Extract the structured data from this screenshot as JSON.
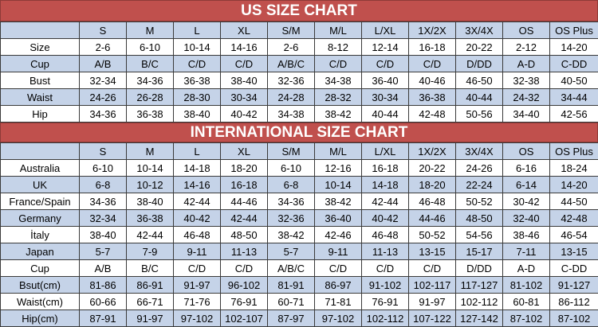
{
  "us": {
    "title": "US SIZE CHART",
    "columns": [
      "",
      "S",
      "M",
      "L",
      "XL",
      "S/M",
      "M/L",
      "L/XL",
      "1X/2X",
      "3X/4X",
      "OS",
      "OS Plus"
    ],
    "rows": [
      [
        "Size",
        "2-6",
        "6-10",
        "10-14",
        "14-16",
        "2-6",
        "8-12",
        "12-14",
        "16-18",
        "20-22",
        "2-12",
        "14-20"
      ],
      [
        "Cup",
        "A/B",
        "B/C",
        "C/D",
        "C/D",
        "A/B/C",
        "C/D",
        "C/D",
        "C/D",
        "D/DD",
        "A-D",
        "C-DD"
      ],
      [
        "Bust",
        "32-34",
        "34-36",
        "36-38",
        "38-40",
        "32-36",
        "34-38",
        "36-40",
        "40-46",
        "46-50",
        "32-38",
        "40-50"
      ],
      [
        "Waist",
        "24-26",
        "26-28",
        "28-30",
        "30-34",
        "24-28",
        "28-32",
        "30-34",
        "36-38",
        "40-44",
        "24-32",
        "34-44"
      ],
      [
        "Hip",
        "34-36",
        "36-38",
        "38-40",
        "40-42",
        "34-38",
        "38-42",
        "40-44",
        "42-48",
        "50-56",
        "34-40",
        "42-56"
      ]
    ]
  },
  "intl": {
    "title": "INTERNATIONAL SIZE CHART",
    "columns": [
      "",
      "S",
      "M",
      "L",
      "XL",
      "S/M",
      "M/L",
      "L/XL",
      "1X/2X",
      "3X/4X",
      "OS",
      "OS Plus"
    ],
    "rows": [
      [
        "Australia",
        "6-10",
        "10-14",
        "14-18",
        "18-20",
        "6-10",
        "12-16",
        "16-18",
        "20-22",
        "24-26",
        "6-16",
        "18-24"
      ],
      [
        "UK",
        "6-8",
        "10-12",
        "14-16",
        "16-18",
        "6-8",
        "10-14",
        "14-18",
        "18-20",
        "22-24",
        "6-14",
        "14-20"
      ],
      [
        "France/Spain",
        "34-36",
        "38-40",
        "42-44",
        "44-46",
        "34-36",
        "38-42",
        "42-44",
        "46-48",
        "50-52",
        "30-42",
        "44-50"
      ],
      [
        "Germany",
        "32-34",
        "36-38",
        "40-42",
        "42-44",
        "32-36",
        "36-40",
        "40-42",
        "44-46",
        "48-50",
        "32-40",
        "42-48"
      ],
      [
        "İtaly",
        "38-40",
        "42-44",
        "46-48",
        "48-50",
        "38-42",
        "42-46",
        "46-48",
        "50-52",
        "54-56",
        "38-46",
        "46-54"
      ],
      [
        "Japan",
        "5-7",
        "7-9",
        "9-11",
        "11-13",
        "5-7",
        "9-11",
        "11-13",
        "13-15",
        "15-17",
        "7-11",
        "13-15"
      ],
      [
        "Cup",
        "A/B",
        "B/C",
        "C/D",
        "C/D",
        "A/B/C",
        "C/D",
        "C/D",
        "C/D",
        "D/DD",
        "A-D",
        "C-DD"
      ],
      [
        "Bsut(cm)",
        "81-86",
        "86-91",
        "91-97",
        "96-102",
        "81-91",
        "86-97",
        "91-102",
        "102-117",
        "117-127",
        "81-102",
        "91-127"
      ],
      [
        "Waist(cm)",
        "60-66",
        "66-71",
        "71-76",
        "76-91",
        "60-71",
        "71-81",
        "76-91",
        "91-97",
        "102-112",
        "60-81",
        "86-112"
      ],
      [
        "Hip(cm)",
        "87-91",
        "91-97",
        "97-102",
        "102-107",
        "87-97",
        "97-102",
        "102-112",
        "107-122",
        "127-142",
        "87-102",
        "87-102"
      ]
    ]
  }
}
